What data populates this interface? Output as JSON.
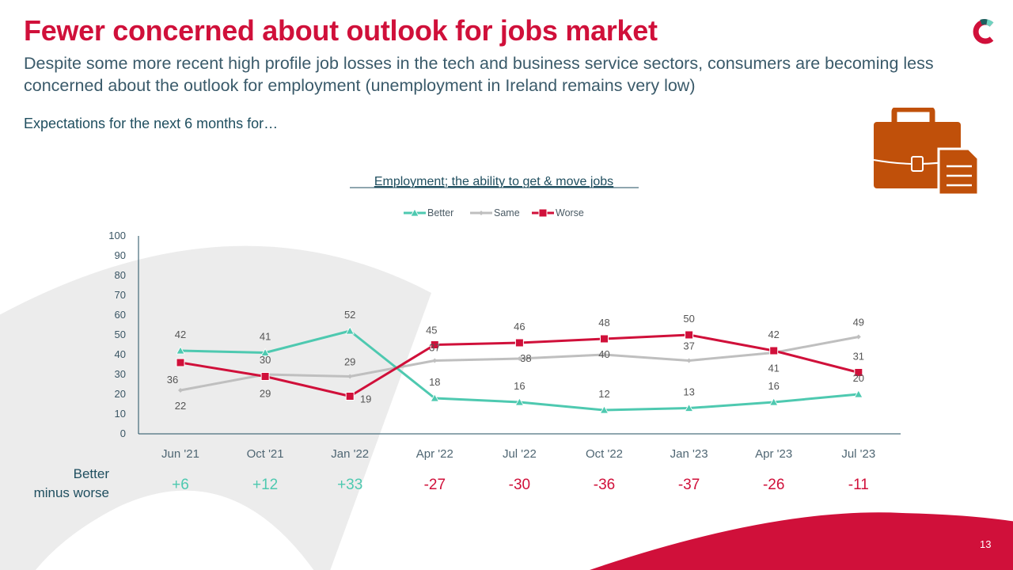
{
  "slide": {
    "title": "Fewer concerned about outlook for jobs market",
    "subtitle": "Despite some more recent high profile job losses in the tech and business service sectors, consumers are becoming less concerned about the outlook for employment (unemployment in Ireland remains very low)",
    "section_label": "Expectations for the next 6 months for…",
    "page_number": "13",
    "logo_icon": "brand-c-logo-icon",
    "illustration_icon": "briefcase-document-icon"
  },
  "colors": {
    "brand_red": "#d0103a",
    "better": "#4ec9b0",
    "same": "#bfbfbf",
    "worse": "#d0103a",
    "text_dark": "#1f4e5f",
    "briefcase": "#c0500a",
    "bg_arc": "#ececec"
  },
  "chart_data": {
    "type": "line",
    "title": "Employment; the ability to get & move jobs",
    "xlabel": "",
    "ylabel": "",
    "ylim": [
      0,
      100
    ],
    "yticks": [
      0,
      10,
      20,
      30,
      40,
      50,
      60,
      70,
      80,
      90,
      100
    ],
    "grid": false,
    "legend_position": "top-center",
    "categories": [
      "Jun '21",
      "Oct '21",
      "Jan '22",
      "Apr '22",
      "Jul '22",
      "Oct '22",
      "Jan '23",
      "Apr '23",
      "Jul '23"
    ],
    "series": [
      {
        "name": "Better",
        "marker": "triangle",
        "color": "#4ec9b0",
        "values": [
          42,
          41,
          52,
          18,
          16,
          12,
          13,
          16,
          20
        ]
      },
      {
        "name": "Same",
        "marker": "diamond",
        "color": "#bfbfbf",
        "values": [
          22,
          30,
          29,
          37,
          38,
          40,
          37,
          41,
          49
        ]
      },
      {
        "name": "Worse",
        "marker": "square",
        "color": "#d0103a",
        "values": [
          36,
          29,
          19,
          45,
          46,
          48,
          50,
          42,
          31
        ]
      }
    ],
    "better_minus_worse": {
      "label_line1": "Better",
      "label_line2": "minus worse",
      "values": [
        "+6",
        "+12",
        "+33",
        "-27",
        "-30",
        "-36",
        "-37",
        "-26",
        "-11"
      ]
    }
  }
}
